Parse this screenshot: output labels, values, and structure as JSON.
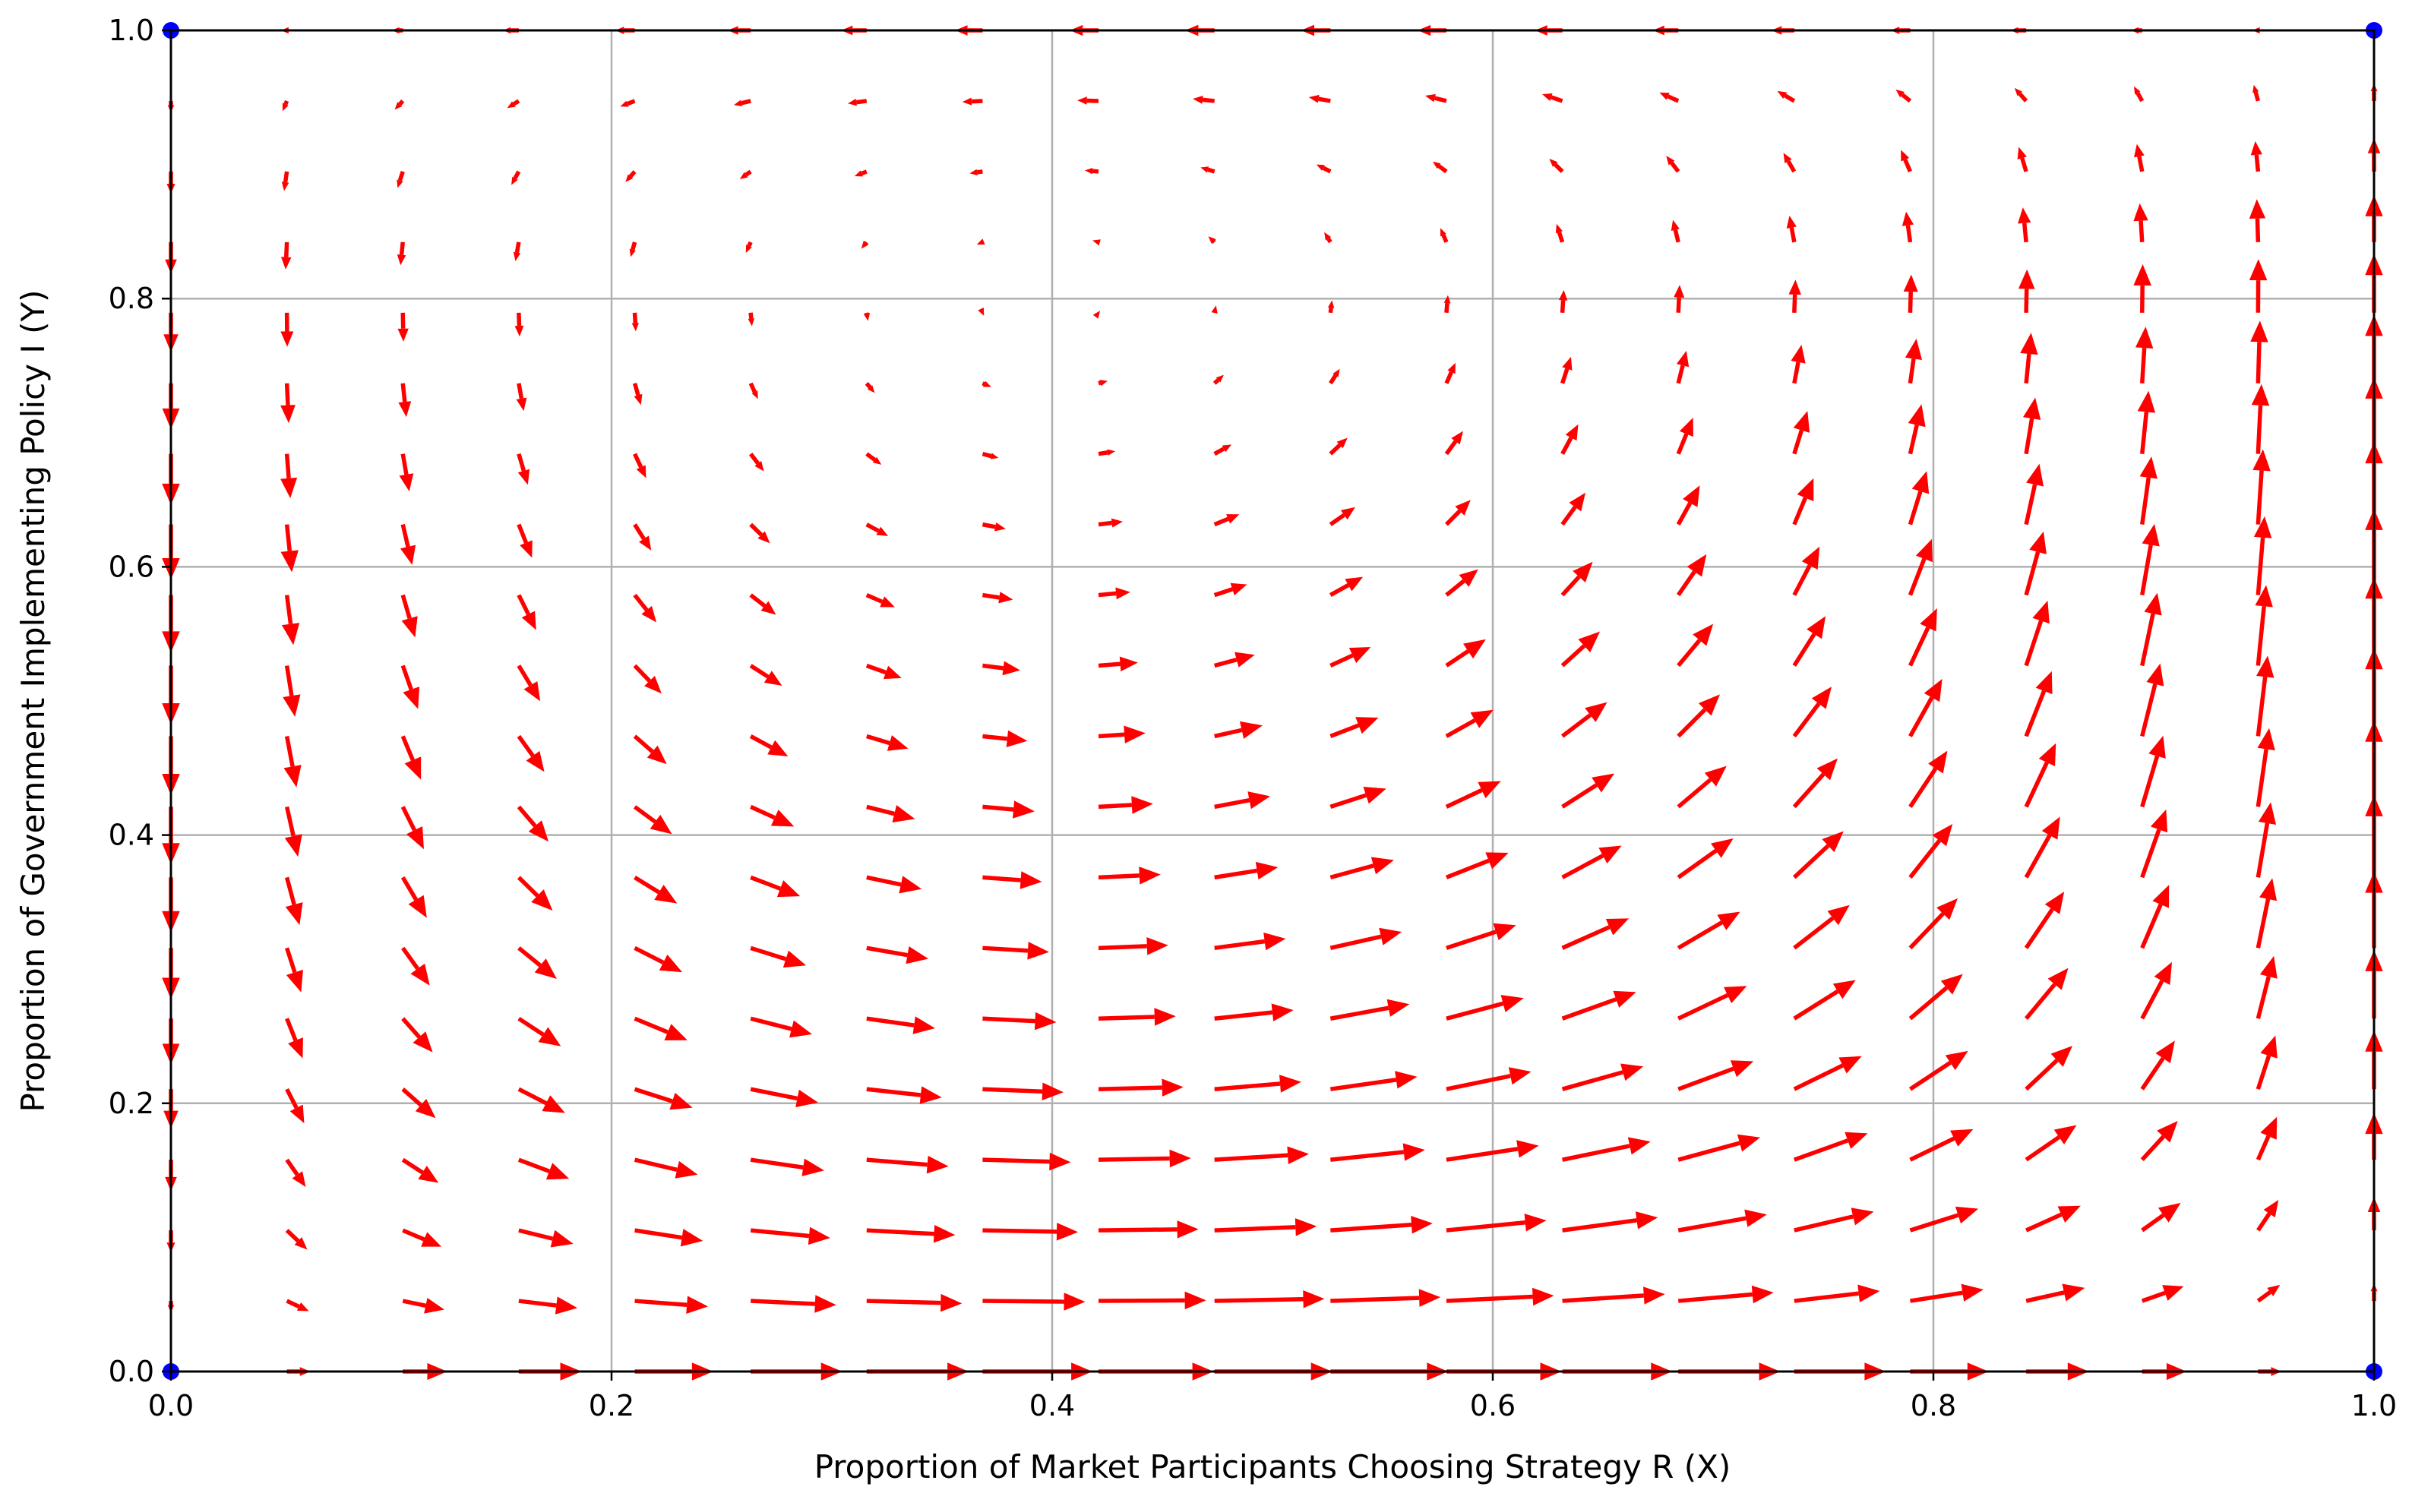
{
  "chart_data": {
    "type": "quiver",
    "title": "",
    "xlabel": "Proportion of Market Participants Choosing Strategy R (X)",
    "ylabel": "Proportion of Government Implementing Policy I (Y)",
    "xlim": [
      0.0,
      1.0
    ],
    "ylim": [
      0.0,
      1.0
    ],
    "xticks": [
      0.0,
      0.2,
      0.4,
      0.6,
      0.8,
      1.0
    ],
    "yticks": [
      0.0,
      0.2,
      0.4,
      0.6,
      0.8,
      1.0
    ],
    "xtick_labels": [
      "0.0",
      "0.2",
      "0.4",
      "0.6",
      "0.8",
      "1.0"
    ],
    "ytick_labels": [
      "0.0",
      "0.2",
      "0.4",
      "0.6",
      "0.8",
      "1.0"
    ],
    "grid": true,
    "field": {
      "x_grid": [
        0.0,
        0.05263,
        0.10526,
        0.15789,
        0.21053,
        0.26316,
        0.31579,
        0.36842,
        0.42105,
        0.47368,
        0.52632,
        0.57895,
        0.63158,
        0.68421,
        0.73684,
        0.78947,
        0.84211,
        0.89474,
        0.94737,
        1.0
      ],
      "y_grid": [
        0.0,
        0.05263,
        0.10526,
        0.15789,
        0.21053,
        0.26316,
        0.31579,
        0.36842,
        0.42105,
        0.47368,
        0.52632,
        0.57895,
        0.63158,
        0.68421,
        0.73684,
        0.78947,
        0.84211,
        0.89474,
        0.94737,
        1.0
      ],
      "dx": "X(1-X)(0.8-Y)",
      "dy": "Y(1-Y)(X-0.4)",
      "arrow_color": "#ff0000"
    },
    "equilibrium_points": [
      {
        "x": 0.0,
        "y": 0.0
      },
      {
        "x": 0.0,
        "y": 1.0
      },
      {
        "x": 1.0,
        "y": 0.0
      },
      {
        "x": 1.0,
        "y": 1.0
      }
    ],
    "point_color": "#0000ff"
  }
}
